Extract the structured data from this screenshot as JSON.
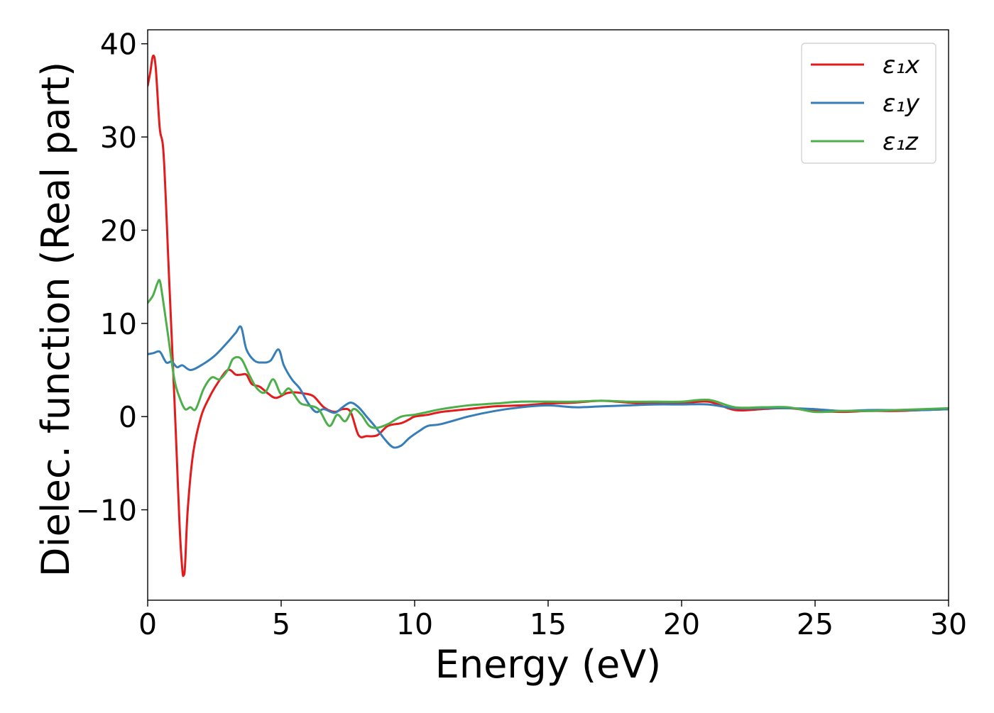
{
  "chart_data": {
    "type": "line",
    "title": "",
    "xlabel": "Energy (eV)",
    "ylabel": "Dielec. function (Real part)",
    "xlim": [
      0,
      30
    ],
    "ylim": [
      -19.7,
      41.5
    ],
    "xticks": [
      0,
      5,
      10,
      15,
      20,
      25,
      30
    ],
    "xtick_labels": [
      "0",
      "5",
      "10",
      "15",
      "20",
      "25",
      "30"
    ],
    "yticks": [
      -10,
      0,
      10,
      20,
      30,
      40
    ],
    "ytick_labels": [
      "−10",
      "0",
      "10",
      "20",
      "30",
      "40"
    ],
    "grid": false,
    "legend": {
      "placement": "top-right"
    },
    "series": [
      {
        "name": "ε₁x",
        "color": "#e41a1c",
        "x": [
          0,
          0.1,
          0.2,
          0.3,
          0.45,
          0.6,
          0.8,
          1.0,
          1.1,
          1.2,
          1.3,
          1.35,
          1.4,
          1.5,
          1.7,
          2.0,
          2.3,
          2.6,
          3.0,
          3.3,
          3.5,
          3.7,
          3.9,
          4.2,
          4.5,
          4.8,
          5.2,
          5.5,
          5.8,
          6.2,
          6.6,
          7.0,
          7.3,
          7.6,
          7.9,
          8.2,
          8.6,
          9.0,
          9.5,
          9.8,
          10.0,
          10.5,
          11,
          12,
          13,
          14,
          15,
          16,
          17,
          18,
          19,
          20,
          21,
          22,
          23,
          24,
          25,
          26,
          27,
          28,
          29,
          30
        ],
        "values": [
          35.5,
          37,
          38.7,
          37.5,
          31,
          28,
          15,
          2,
          -5,
          -12,
          -16.5,
          -17,
          -16,
          -10,
          -4,
          0,
          2,
          3.5,
          5,
          4.5,
          4.5,
          4.5,
          3.5,
          3.2,
          2.5,
          2,
          2.5,
          2.6,
          2.5,
          2.2,
          1.0,
          0.5,
          0.8,
          0.5,
          -2,
          -2.1,
          -2,
          -1,
          -0.7,
          -0.3,
          0,
          0.2,
          0.5,
          0.8,
          1.1,
          1.2,
          1.4,
          1.5,
          1.7,
          1.5,
          1.4,
          1.4,
          1.6,
          0.7,
          0.8,
          0.9,
          0.6,
          0.5,
          0.6,
          0.6,
          0.7,
          0.8
        ]
      },
      {
        "name": "ε₁y",
        "color": "#377eb8",
        "x": [
          0,
          0.2,
          0.4,
          0.5,
          0.7,
          0.9,
          1.1,
          1.3,
          1.6,
          2.0,
          2.5,
          3.0,
          3.3,
          3.5,
          3.7,
          4.0,
          4.3,
          4.6,
          4.9,
          5.1,
          5.4,
          5.7,
          6.0,
          6.3,
          6.6,
          7.0,
          7.3,
          7.6,
          7.9,
          8.2,
          8.5,
          8.9,
          9.2,
          9.5,
          9.8,
          10.2,
          10.5,
          11,
          12,
          13,
          14,
          15,
          16,
          17,
          18,
          19,
          20,
          21,
          22,
          23,
          24,
          25,
          26,
          27,
          28,
          29,
          30
        ],
        "values": [
          6.7,
          6.8,
          7.0,
          6.8,
          5.8,
          5.9,
          5.3,
          5.5,
          5.0,
          5.5,
          6.5,
          8.0,
          9.0,
          9.6,
          7.2,
          6.0,
          5.8,
          6.0,
          7.2,
          5.5,
          4.0,
          3.0,
          1.5,
          0.5,
          0.8,
          0.4,
          1.0,
          1.5,
          1.0,
          0,
          -1.0,
          -2.5,
          -3.3,
          -3.1,
          -2.3,
          -1.5,
          -1.0,
          -0.8,
          0,
          0.6,
          1.0,
          1.2,
          1.0,
          1.1,
          1.2,
          1.3,
          1.3,
          1.3,
          0.9,
          0.9,
          0.9,
          0.8,
          0.6,
          0.7,
          0.7,
          0.7,
          0.8
        ]
      },
      {
        "name": "ε₁z",
        "color": "#4daf4a",
        "x": [
          0,
          0.2,
          0.35,
          0.45,
          0.55,
          0.75,
          1.0,
          1.2,
          1.4,
          1.6,
          1.8,
          2.1,
          2.4,
          2.7,
          3.0,
          3.2,
          3.5,
          3.8,
          4.1,
          4.4,
          4.7,
          5.0,
          5.3,
          5.7,
          6.0,
          6.4,
          6.8,
          7.1,
          7.4,
          7.7,
          8.0,
          8.3,
          8.6,
          9.0,
          9.5,
          10.0,
          10.5,
          11,
          12,
          13,
          14,
          15,
          16,
          17,
          18,
          19,
          20,
          21,
          22,
          23,
          24,
          25,
          26,
          27,
          28,
          29,
          30
        ],
        "values": [
          12.2,
          13.0,
          14.2,
          14.6,
          13.0,
          9.0,
          4.0,
          2.0,
          0.8,
          1.0,
          0.8,
          3.0,
          4.2,
          4.0,
          5.0,
          6.2,
          6.2,
          4.5,
          3.0,
          2.6,
          4.0,
          2.4,
          3.0,
          1.5,
          1.2,
          0.8,
          -1.0,
          0.2,
          -0.5,
          0.8,
          0.2,
          -1.0,
          -1.2,
          -0.8,
          0,
          0.2,
          0.5,
          0.8,
          1.2,
          1.4,
          1.6,
          1.6,
          1.6,
          1.7,
          1.6,
          1.6,
          1.6,
          1.8,
          1.0,
          1.0,
          1.0,
          0.5,
          0.6,
          0.6,
          0.7,
          0.8,
          0.9
        ]
      }
    ]
  }
}
